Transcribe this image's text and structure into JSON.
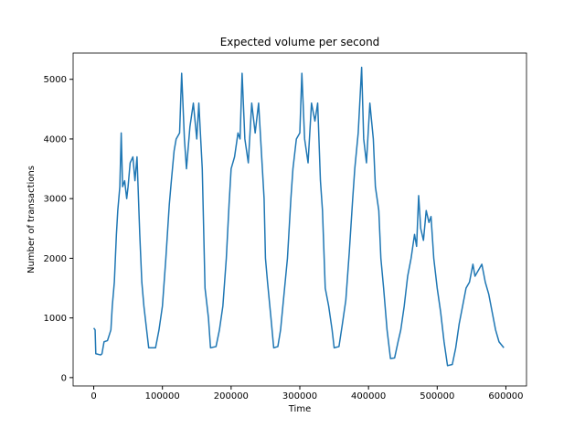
{
  "chart_data": {
    "type": "line",
    "title": "Expected volume per second",
    "x_label": "Time",
    "y_label": "Number of transactions",
    "x": [
      0,
      2000,
      3000,
      10000,
      12000,
      15000,
      20000,
      25000,
      27000,
      30000,
      33000,
      35000,
      38000,
      40000,
      42000,
      45000,
      48000,
      50000,
      53000,
      57000,
      60000,
      63000,
      67000,
      70000,
      73000,
      77000,
      80000,
      85000,
      90000,
      95000,
      100000,
      105000,
      110000,
      113000,
      117000,
      120000,
      125000,
      128000,
      132000,
      135000,
      140000,
      145000,
      150000,
      153000,
      158000,
      162000,
      167000,
      170000,
      178000,
      183000,
      188000,
      193000,
      197000,
      200000,
      205000,
      210000,
      213000,
      216000,
      220000,
      225000,
      230000,
      235000,
      240000,
      245000,
      248000,
      250000,
      253000,
      258000,
      262000,
      268000,
      272000,
      277000,
      282000,
      287000,
      290000,
      295000,
      300000,
      303000,
      307000,
      312000,
      317000,
      322000,
      326000,
      330000,
      333000,
      337000,
      342000,
      347000,
      350000,
      357000,
      362000,
      367000,
      372000,
      377000,
      380000,
      385000,
      390000,
      393000,
      397000,
      402000,
      407000,
      410000,
      415000,
      418000,
      422000,
      427000,
      432000,
      438000,
      443000,
      447000,
      452000,
      457000,
      462000,
      467000,
      470000,
      473000,
      476000,
      480000,
      484000,
      488000,
      491000,
      495000,
      500000,
      505000,
      510000,
      515000,
      522000,
      527000,
      532000,
      537000,
      542000,
      547000,
      552000,
      555000,
      560000,
      565000,
      570000,
      575000,
      580000,
      585000,
      590000,
      597000
    ],
    "series": [
      {
        "color": "#1f77b4",
        "values": [
          830,
          800,
          400,
          380,
          400,
          600,
          620,
          800,
          1200,
          1600,
          2400,
          2800,
          3200,
          4100,
          3200,
          3300,
          3000,
          3200,
          3600,
          3700,
          3300,
          3700,
          2400,
          1600,
          1200,
          800,
          500,
          500,
          500,
          800,
          1200,
          2000,
          2900,
          3300,
          3800,
          4000,
          4100,
          5100,
          4000,
          3500,
          4200,
          4600,
          4000,
          4600,
          3500,
          1500,
          1000,
          500,
          520,
          800,
          1200,
          2000,
          2900,
          3500,
          3700,
          4100,
          4000,
          5100,
          4000,
          3600,
          4600,
          4100,
          4600,
          3600,
          3000,
          2000,
          1600,
          1000,
          500,
          520,
          800,
          1400,
          2000,
          3000,
          3500,
          4000,
          4100,
          5100,
          4000,
          3600,
          4600,
          4300,
          4600,
          3300,
          2800,
          1500,
          1200,
          800,
          500,
          520,
          900,
          1300,
          2100,
          3000,
          3500,
          4100,
          5200,
          4000,
          3600,
          4600,
          4000,
          3200,
          2800,
          2000,
          1500,
          800,
          320,
          330,
          600,
          800,
          1200,
          1700,
          2000,
          2400,
          2200,
          3050,
          2500,
          2300,
          2800,
          2600,
          2700,
          2000,
          1500,
          1100,
          600,
          200,
          220,
          500,
          900,
          1200,
          1500,
          1600,
          1900,
          1700,
          1800,
          1900,
          1600,
          1400,
          1100,
          800,
          600,
          500
        ]
      }
    ],
    "xlim": [
      -30000,
      630000
    ],
    "ylim": [
      -140,
      5440
    ],
    "xticks": [
      0,
      100000,
      200000,
      300000,
      400000,
      500000,
      600000
    ],
    "yticks": [
      0,
      1000,
      2000,
      3000,
      4000,
      5000
    ]
  }
}
